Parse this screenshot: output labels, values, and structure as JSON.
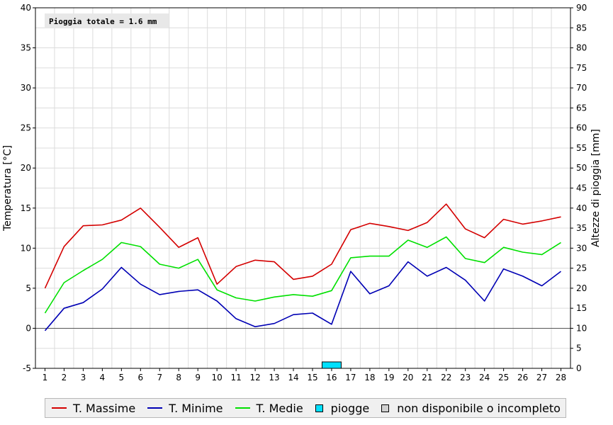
{
  "chart_data": {
    "type": "line",
    "annotation": "Pioggia totale = 1.6 mm",
    "ylabel": "Temperatura [°C]",
    "y2label": "Altezze di pioggia [mm]",
    "ylim": [
      -5,
      40
    ],
    "y2lim": [
      0,
      90
    ],
    "y_ticks": [
      "-5",
      "0",
      "5",
      "10",
      "15",
      "20",
      "25",
      "30",
      "35",
      "40"
    ],
    "y2_ticks": [
      "0",
      "5",
      "10",
      "15",
      "20",
      "25",
      "30",
      "35",
      "40",
      "45",
      "50",
      "55",
      "60",
      "65",
      "70",
      "75",
      "80",
      "85",
      "90"
    ],
    "categories": [
      "1",
      "2",
      "3",
      "4",
      "5",
      "6",
      "7",
      "8",
      "9",
      "10",
      "11",
      "12",
      "13",
      "14",
      "15",
      "16",
      "17",
      "18",
      "19",
      "20",
      "21",
      "22",
      "23",
      "24",
      "25",
      "26",
      "27",
      "28"
    ],
    "series": [
      {
        "name": "T. Massime",
        "color": "#d40000",
        "values": [
          5.0,
          10.2,
          12.8,
          12.9,
          13.5,
          15.0,
          12.6,
          10.1,
          11.3,
          5.5,
          7.7,
          8.5,
          8.3,
          6.1,
          6.5,
          8.0,
          12.3,
          13.1,
          12.7,
          12.2,
          13.2,
          15.5,
          12.4,
          11.3,
          13.6,
          13.0,
          13.4,
          13.9
        ]
      },
      {
        "name": "T. Minime",
        "color": "#0000b4",
        "values": [
          -0.3,
          2.5,
          3.2,
          4.9,
          7.6,
          5.5,
          4.2,
          4.6,
          4.8,
          3.4,
          1.2,
          0.2,
          0.6,
          1.7,
          1.9,
          0.5,
          7.1,
          4.3,
          5.3,
          8.3,
          6.5,
          7.6,
          6.0,
          3.4,
          7.4,
          6.5,
          5.3,
          7.1
        ]
      },
      {
        "name": "T. Medie",
        "color": "#00e000",
        "values": [
          1.9,
          5.7,
          7.2,
          8.6,
          10.7,
          10.2,
          8.0,
          7.5,
          8.6,
          4.8,
          3.8,
          3.4,
          3.9,
          4.2,
          4.0,
          4.7,
          8.8,
          9.0,
          9.0,
          11.0,
          10.1,
          11.4,
          8.7,
          8.2,
          10.1,
          9.5,
          9.2,
          10.7
        ]
      }
    ],
    "rain": {
      "name": "piogge",
      "color": "#00e0ff",
      "values": [
        0,
        0,
        0,
        0,
        0,
        0,
        0,
        0,
        0,
        0,
        0,
        0,
        0,
        0,
        0,
        1.6,
        0,
        0,
        0,
        0,
        0,
        0,
        0,
        0,
        0,
        0,
        0,
        0
      ]
    },
    "missing_label": "non disponibile o incompleto",
    "missing_color": "#d0d0d0",
    "grid": true
  }
}
